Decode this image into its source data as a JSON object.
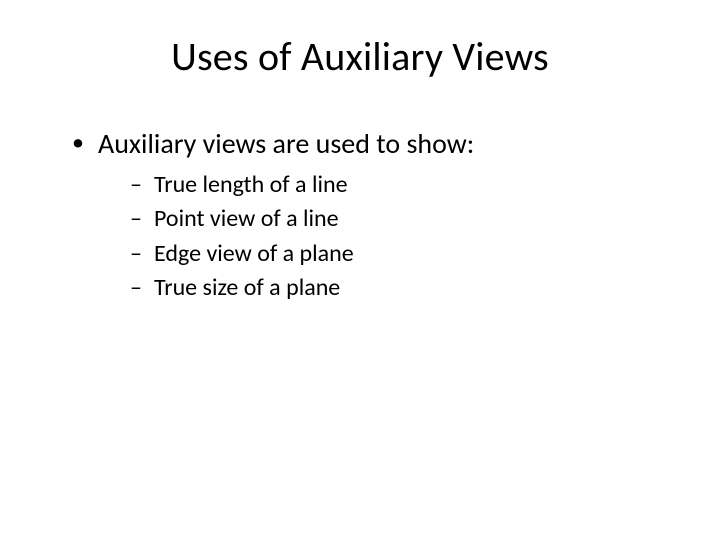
{
  "title": "Uses of Auxiliary Views",
  "level1": [
    "Auxiliary views are used to show:"
  ],
  "level2": [
    "True length of a line",
    "Point view of a line",
    "Edge view of a plane",
    "True size of a plane"
  ],
  "styles": {
    "background_color": "#ffffff",
    "text_color": "#000000",
    "title_fontsize": 40,
    "body_fontsize": 28,
    "sub_fontsize": 24,
    "font_family": "Calibri"
  }
}
